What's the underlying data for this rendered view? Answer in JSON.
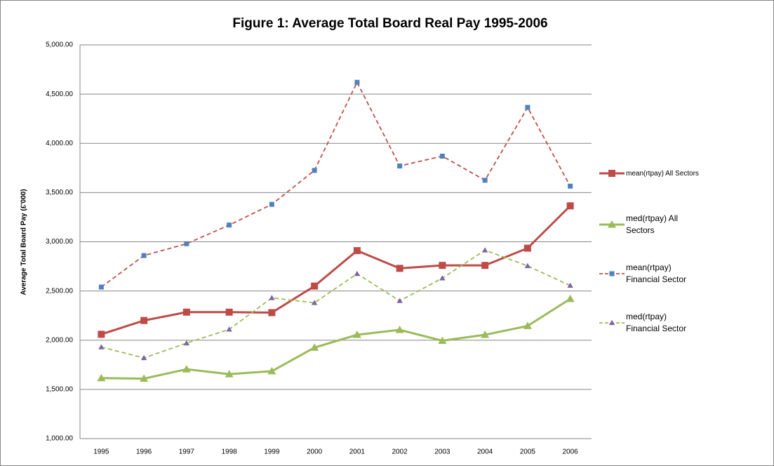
{
  "chart_data": {
    "type": "line",
    "title": "Figure 1: Average Total Board Real Pay 1995-2006",
    "y_label": "Average Total Board Pay (£'000)",
    "categories": [
      "1995",
      "1996",
      "1997",
      "1998",
      "1999",
      "2000",
      "2001",
      "2002",
      "2003",
      "2004",
      "2005",
      "2006"
    ],
    "series": [
      {
        "name": "mean(rtpay) All Sectors",
        "color": "#be4b48",
        "marker": "square",
        "dashed": false,
        "values": [
          2060,
          2200,
          2285,
          2285,
          2280,
          2550,
          2910,
          2730,
          2760,
          2760,
          2935,
          3365
        ]
      },
      {
        "name": "med(rtpay) All Sectors",
        "color": "#9bbb59",
        "marker": "triangle",
        "dashed": false,
        "values": [
          1615,
          1610,
          1705,
          1655,
          1685,
          1925,
          2055,
          2105,
          1995,
          2055,
          2145,
          2420
        ]
      },
      {
        "name": "mean(rtpay) Financial Sector",
        "color": "#c0504d",
        "marker_color": "#4f81bd",
        "marker": "square",
        "dashed": true,
        "values": [
          2540,
          2860,
          2980,
          3170,
          3380,
          3725,
          4620,
          3770,
          3870,
          3625,
          4365,
          3565
        ]
      },
      {
        "name": "med(rtpay) Financial Sector",
        "color": "#9bbb59",
        "marker_color": "#8064a2",
        "marker": "triangle",
        "dashed": true,
        "values": [
          1930,
          1820,
          1970,
          2110,
          2430,
          2380,
          2675,
          2400,
          2630,
          2915,
          2755,
          2555
        ]
      }
    ],
    "ylim": [
      1000,
      5000
    ],
    "yticks": [
      {
        "value": 1000,
        "label": "1,000.00"
      },
      {
        "value": 1500,
        "label": "1,500.00"
      },
      {
        "value": 2000,
        "label": "2,000.00"
      },
      {
        "value": 2500,
        "label": "2,500.00"
      },
      {
        "value": 3000,
        "label": "3,000.00"
      },
      {
        "value": 3500,
        "label": "3,500.00"
      },
      {
        "value": 4000,
        "label": "4,000.00"
      },
      {
        "value": 4500,
        "label": "4,500.00"
      },
      {
        "value": 5000,
        "label": "5,000.00"
      }
    ],
    "grid": true,
    "legend": "right"
  }
}
